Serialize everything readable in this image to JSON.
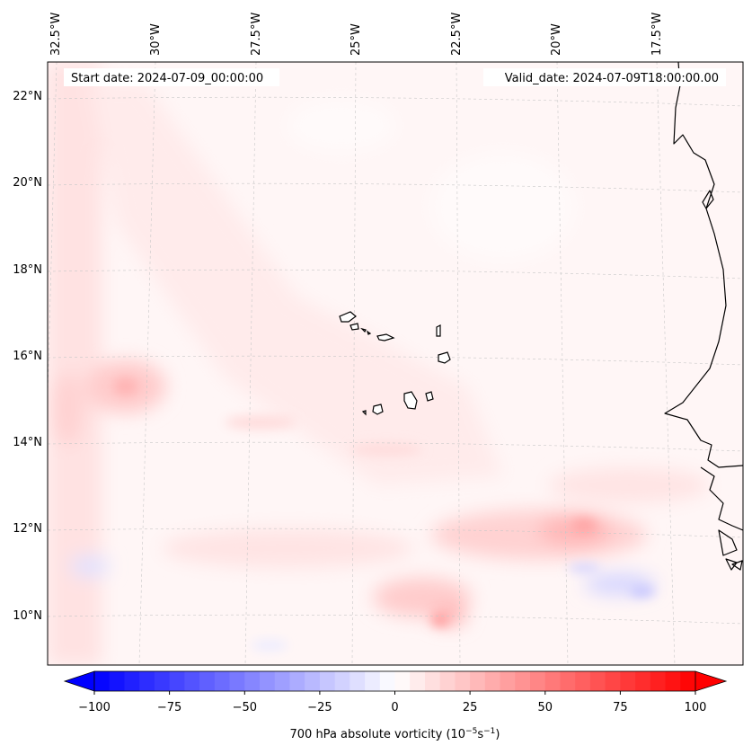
{
  "map": {
    "start_date": "Start date: 2024-07-09_00:00:00",
    "valid_date": "Valid_date: 2024-07-09T18:00:00.00",
    "lon_labels": [
      "32.5°W",
      "30°W",
      "27.5°W",
      "25°W",
      "22.5°W",
      "20°W",
      "17.5°W"
    ],
    "lat_labels": [
      "22°N",
      "20°N",
      "18°N",
      "16°N",
      "14°N",
      "12°N",
      "10°N"
    ]
  },
  "colorbar": {
    "label": "700 hPa absolute vorticity (10",
    "label_exp1": "−5",
    "label_mid": "s",
    "label_exp2": "−1",
    "label_end": ")",
    "ticks": [
      "−100",
      "−75",
      "−50",
      "−25",
      "0",
      "25",
      "50",
      "75",
      "100"
    ],
    "min": -100,
    "max": 100,
    "levels": 40,
    "color_neg": "#0000ff",
    "color_pos": "#ff0000",
    "color_zero": "#ffffff"
  },
  "colors": {
    "coastline": "#000000",
    "gridline": "#c8c8c8",
    "background": "#fff5f5"
  }
}
